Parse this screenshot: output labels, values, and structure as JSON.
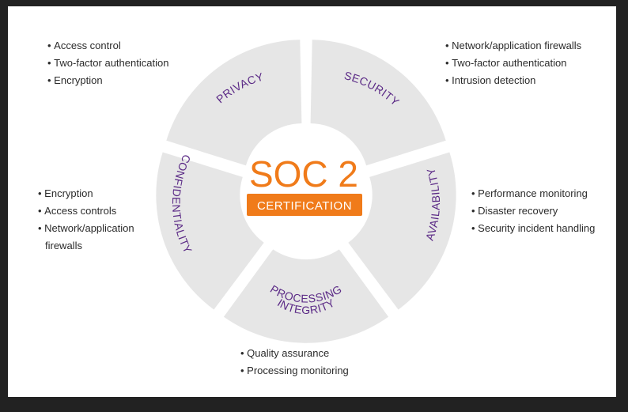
{
  "center": {
    "title": "SOC 2",
    "badge": "CERTIFICATION"
  },
  "segments": [
    {
      "label": "PRIVACY",
      "items": [
        "Access control",
        "Two-factor authentication",
        "Encryption"
      ]
    },
    {
      "label": "SECURITY",
      "items": [
        "Network/application firewalls",
        "Two-factor authentication",
        "Intrusion detection"
      ]
    },
    {
      "label": "AVAILABILITY",
      "items": [
        "Performance monitoring",
        "Disaster recovery",
        "Security incident handling"
      ]
    },
    {
      "label": "PROCESSING",
      "label2": "INTEGRITY",
      "items": [
        "Quality assurance",
        "Processing monitoring"
      ]
    },
    {
      "label": "CONFIDENTIALITY",
      "items": [
        "Encryption",
        "Access controls",
        "Network/application firewalls"
      ]
    }
  ],
  "colors": {
    "segment": "#e6e6e6",
    "label": "#5b2a86",
    "accent": "#f07b1a",
    "text": "#2b2b2b",
    "frame": "#222222"
  }
}
